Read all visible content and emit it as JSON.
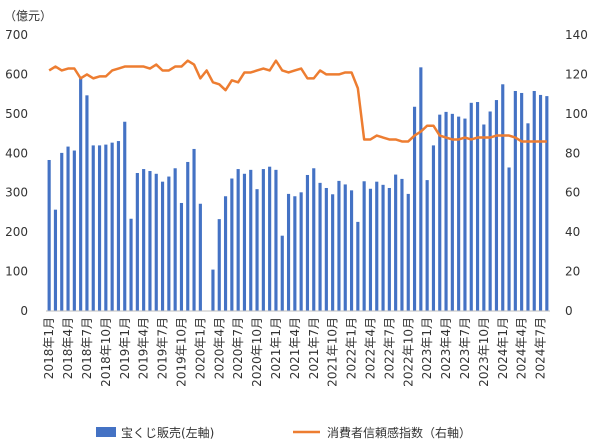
{
  "chart_data": {
    "type": "bar",
    "left_axis_unit": "（億元）",
    "right_axis_unit": "",
    "ylim_left": [
      0,
      700
    ],
    "ylim_right": [
      0,
      140
    ],
    "y_ticks_left": [
      0,
      100,
      200,
      300,
      400,
      500,
      600,
      700
    ],
    "y_ticks_right": [
      0,
      20,
      40,
      60,
      80,
      100,
      120,
      140
    ],
    "x_tick_labels": [
      "2018年1月",
      "2018年4月",
      "2018年7月",
      "2018年10月",
      "2019年1月",
      "2019年4月",
      "2019年7月",
      "2019年10月",
      "2020年1月",
      "2020年4月",
      "2020年7月",
      "2020年10月",
      "2021年1月",
      "2021年4月",
      "2021年7月",
      "2021年10月",
      "2022年1月",
      "2022年4月",
      "2022年7月",
      "2022年10月",
      "2023年1月",
      "2023年4月",
      "2023年7月",
      "2023年10月",
      "2024年1月",
      "2024年4月",
      "2024年7月"
    ],
    "grid": false,
    "legend_position": "bottom",
    "colors": {
      "bars": "#4472c4",
      "line": "#ed7d31",
      "axis": "#bfbfbf",
      "text": "#333333"
    },
    "series": [
      {
        "name": "宝くじ販売(左軸)",
        "type": "bar",
        "axis": "left",
        "values": [
          383,
          257,
          401,
          417,
          407,
          590,
          547,
          420,
          420,
          422,
          427,
          431,
          480,
          234,
          350,
          360,
          355,
          348,
          328,
          341,
          362,
          274,
          378,
          411,
          272,
          0,
          105,
          233,
          291,
          336,
          360,
          348,
          358,
          309,
          360,
          366,
          358,
          191,
          297,
          291,
          301,
          345,
          362,
          325,
          312,
          296,
          330,
          321,
          306,
          226,
          329,
          310,
          328,
          320,
          312,
          346,
          335,
          297,
          518,
          618,
          332,
          420,
          498,
          505,
          500,
          493,
          488,
          528,
          530,
          473,
          506,
          535,
          575,
          364,
          558,
          553,
          476,
          558,
          548,
          545
        ]
      },
      {
        "name": "消費者信頼感指数（右軸）",
        "type": "line",
        "axis": "right",
        "values": [
          122,
          124,
          122,
          123,
          123,
          118,
          120,
          118,
          119,
          119,
          122,
          123,
          124,
          124,
          124,
          124,
          123,
          125,
          122,
          122,
          124,
          124,
          127,
          125,
          118,
          122,
          116,
          115,
          112,
          117,
          116,
          121,
          121,
          122,
          123,
          122,
          127,
          122,
          121,
          122,
          123,
          118,
          118,
          122,
          120,
          120,
          120,
          121,
          121,
          113,
          87,
          87,
          89,
          88,
          87,
          87,
          86,
          86,
          89,
          91,
          94,
          94,
          89,
          88,
          87,
          87,
          88,
          87,
          88,
          88,
          88,
          89,
          89,
          89,
          88,
          86,
          86,
          86,
          86,
          86
        ]
      }
    ]
  }
}
